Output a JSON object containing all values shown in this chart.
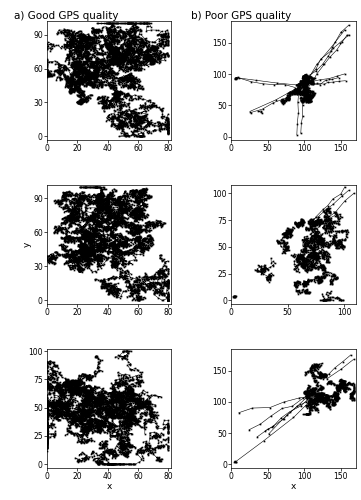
{
  "title_a": "a) Good GPS quality",
  "title_b": "b) Poor GPS quality",
  "xlabel": "x",
  "ylabel": "y",
  "good_plots": [
    {
      "xlim": [
        0,
        82
      ],
      "ylim": [
        -3,
        102
      ],
      "xticks": [
        0,
        20,
        40,
        60,
        80
      ],
      "yticks": [
        0,
        30,
        60,
        90
      ]
    },
    {
      "xlim": [
        0,
        82
      ],
      "ylim": [
        -3,
        102
      ],
      "xticks": [
        0,
        20,
        40,
        60,
        80
      ],
      "yticks": [
        0,
        30,
        60,
        90
      ]
    },
    {
      "xlim": [
        0,
        82
      ],
      "ylim": [
        -3,
        102
      ],
      "xticks": [
        0,
        20,
        40,
        60,
        80
      ],
      "yticks": [
        0,
        25,
        50,
        75,
        100
      ]
    }
  ],
  "poor_plots": [
    {
      "xlim": [
        0,
        170
      ],
      "ylim": [
        -5,
        185
      ],
      "xticks": [
        0,
        50,
        100,
        150
      ],
      "yticks": [
        0,
        50,
        100,
        150
      ]
    },
    {
      "xlim": [
        0,
        110
      ],
      "ylim": [
        -3,
        108
      ],
      "xticks": [
        0,
        50,
        100
      ],
      "yticks": [
        0,
        25,
        50,
        75,
        100
      ]
    },
    {
      "xlim": [
        0,
        170
      ],
      "ylim": [
        -5,
        185
      ],
      "xticks": [
        0,
        50,
        100,
        150
      ],
      "yticks": [
        0,
        50,
        100,
        150
      ]
    }
  ],
  "line_color": "black",
  "marker": "s",
  "markersize": 1.2,
  "linewidth": 0.4,
  "bg_color": "white"
}
